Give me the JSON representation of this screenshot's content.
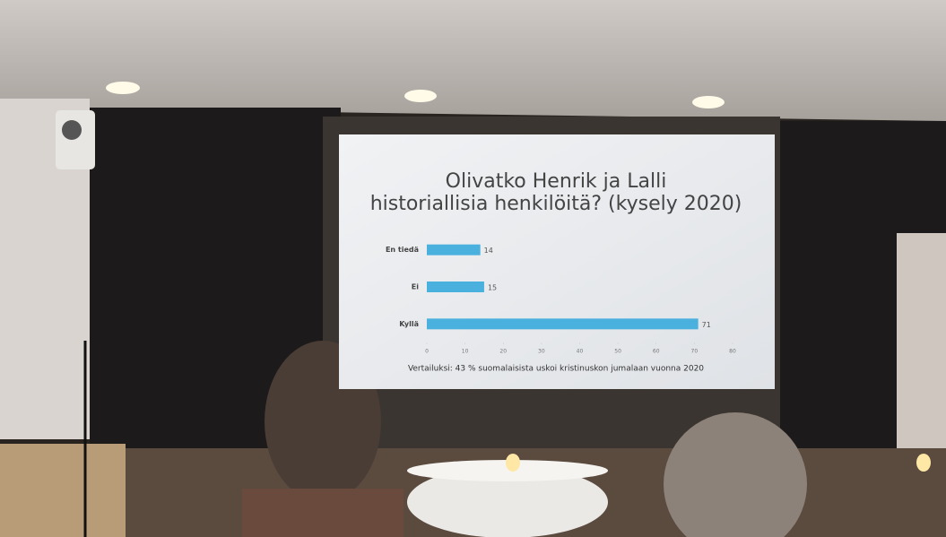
{
  "chart_data": {
    "type": "bar",
    "orientation": "horizontal",
    "title": [
      "Olivatko Henrik ja Lalli",
      "historiallisia henkilöitä? (kysely 2020)"
    ],
    "categories": [
      "En tiedä",
      "Ei",
      "Kyllä"
    ],
    "values": [
      14,
      15,
      71
    ],
    "color": "#4ab0de",
    "xlim": [
      0,
      80
    ],
    "xticks": [
      0,
      10,
      20,
      30,
      40,
      50,
      60,
      70,
      80
    ],
    "annotation": "Vertailuksi: 43 % suomalaisista uskoi kristinuskon jumalaan vuonna 2020"
  }
}
